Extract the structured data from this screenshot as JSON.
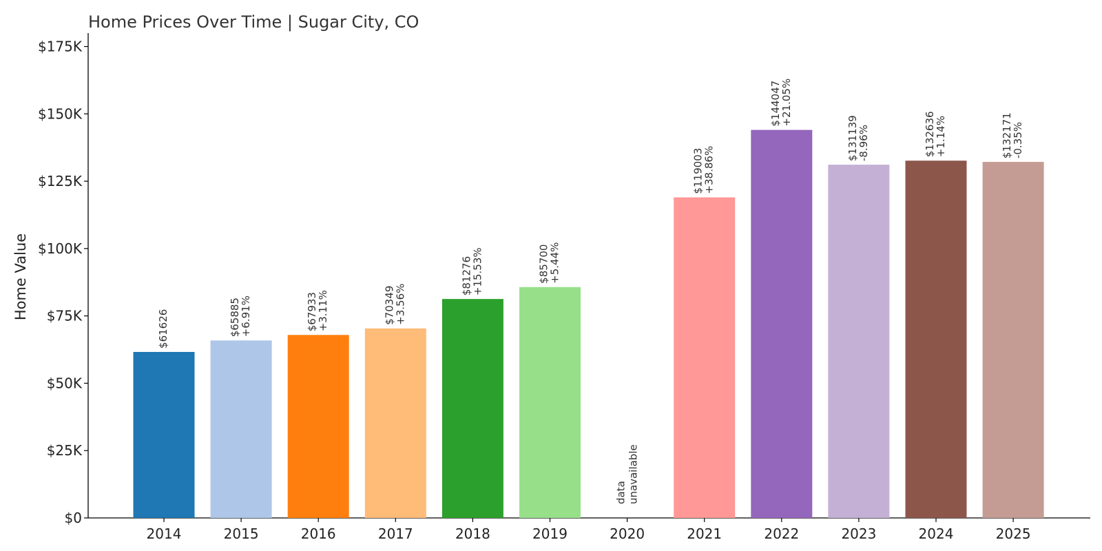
{
  "chart_data": {
    "type": "bar",
    "title": "Home Prices Over Time | Sugar City, CO",
    "xlabel": "",
    "ylabel": "Home Value",
    "ylim": [
      0,
      180000
    ],
    "yticks": [
      0,
      25000,
      50000,
      75000,
      100000,
      125000,
      150000,
      175000
    ],
    "ytick_labels": [
      "$0",
      "$25K",
      "$50K",
      "$75K",
      "$100K",
      "$125K",
      "$150K",
      "$175K"
    ],
    "grid": false,
    "categories": [
      "2014",
      "2015",
      "2016",
      "2017",
      "2018",
      "2019",
      "2020",
      "2021",
      "2022",
      "2023",
      "2024",
      "2025"
    ],
    "values": [
      61626,
      65885,
      67933,
      70349,
      81276,
      85700,
      null,
      119003,
      144047,
      131139,
      132636,
      132171
    ],
    "value_labels": [
      "$61626",
      "$65885",
      "$67933",
      "$70349",
      "$81276",
      "$85700",
      "",
      "$119003",
      "$144047",
      "$131139",
      "$132636",
      "$132171"
    ],
    "change_labels": [
      "",
      "+6.91%",
      "+3.11%",
      "+3.56%",
      "+15.53%",
      "+5.44%",
      "",
      "+38.86%",
      "+21.05%",
      "-8.96%",
      "+1.14%",
      "-0.35%"
    ],
    "missing_label": [
      "data",
      "unavailable"
    ],
    "colors": [
      "#1f77b4",
      "#aec7e8",
      "#ff7f0e",
      "#ffbb78",
      "#2ca02c",
      "#98df8a",
      "#d62728",
      "#ff9896",
      "#9467bd",
      "#c5b0d5",
      "#8c564b",
      "#c49c94"
    ]
  }
}
